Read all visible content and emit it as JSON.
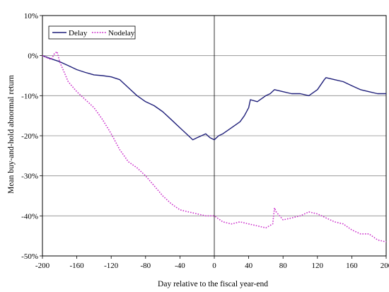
{
  "chart_data": {
    "type": "line",
    "title": "",
    "xlabel": "Day relative to the fiscal year-end",
    "ylabel": "Mean buy-and-hold abnormal return",
    "xlim": [
      -200,
      200
    ],
    "ylim": [
      -50,
      10
    ],
    "xticks": [
      -200,
      -160,
      -120,
      -80,
      -40,
      0,
      40,
      80,
      120,
      160,
      200
    ],
    "xtick_labels": [
      "-200",
      "-160",
      "-120",
      "-80",
      "-40",
      "0",
      "40",
      "80",
      "120",
      "160",
      "200"
    ],
    "yticks": [
      10,
      0,
      -10,
      -20,
      -30,
      -40,
      -50
    ],
    "ytick_labels": [
      "10%",
      "0%",
      "-10%",
      "-20%",
      "-30%",
      "-40%",
      "-50%"
    ],
    "grid": "horizontal",
    "reference_line_x": 0,
    "legend_position": "top-left",
    "series": [
      {
        "name": "Delay",
        "color": "#1f1f7a",
        "style": "solid",
        "x": [
          -200,
          -190,
          -180,
          -170,
          -160,
          -150,
          -140,
          -130,
          -120,
          -110,
          -100,
          -90,
          -80,
          -70,
          -60,
          -50,
          -40,
          -30,
          -25,
          -20,
          -15,
          -10,
          -5,
          0,
          5,
          10,
          20,
          30,
          35,
          40,
          42,
          50,
          60,
          65,
          70,
          80,
          90,
          100,
          110,
          120,
          128,
          130,
          140,
          150,
          160,
          170,
          180,
          190,
          200
        ],
        "y": [
          0,
          -0.8,
          -1.5,
          -2.5,
          -3.5,
          -4.2,
          -4.8,
          -5,
          -5.3,
          -6,
          -8,
          -10,
          -11.5,
          -12.5,
          -14,
          -16,
          -18,
          -20,
          -21,
          -20.5,
          -20,
          -19.5,
          -20.5,
          -21,
          -20,
          -19.5,
          -18,
          -16.5,
          -15,
          -13,
          -11,
          -11.5,
          -10,
          -9.5,
          -8.5,
          -9,
          -9.5,
          -9.5,
          -10,
          -8.5,
          -6,
          -5.5,
          -6,
          -6.5,
          -7.5,
          -8.5,
          -9,
          -9.5,
          -9.5
        ]
      },
      {
        "name": "Nodelay",
        "color": "#cc33cc",
        "style": "dotted",
        "x": [
          -200,
          -195,
          -190,
          -186,
          -183,
          -180,
          -175,
          -170,
          -160,
          -150,
          -140,
          -130,
          -120,
          -110,
          -100,
          -90,
          -80,
          -70,
          -60,
          -50,
          -40,
          -30,
          -20,
          -10,
          0,
          10,
          20,
          30,
          40,
          50,
          60,
          68,
          70,
          72,
          80,
          90,
          100,
          110,
          120,
          130,
          140,
          150,
          160,
          170,
          180,
          190,
          200
        ],
        "y": [
          0,
          -0.5,
          -1,
          0.5,
          1,
          -1.5,
          -4,
          -6.5,
          -9,
          -11,
          -13,
          -16,
          -19.5,
          -23.5,
          -26.5,
          -28,
          -30,
          -32.5,
          -35,
          -37,
          -38.5,
          -39,
          -39.5,
          -40,
          -40,
          -41.5,
          -42,
          -41.5,
          -42,
          -42.5,
          -43,
          -42,
          -38,
          -39,
          -41,
          -40.5,
          -40,
          -39,
          -39.5,
          -40.5,
          -41.5,
          -42,
          -43.5,
          -44.5,
          -44.5,
          -46,
          -46.5
        ]
      }
    ]
  }
}
